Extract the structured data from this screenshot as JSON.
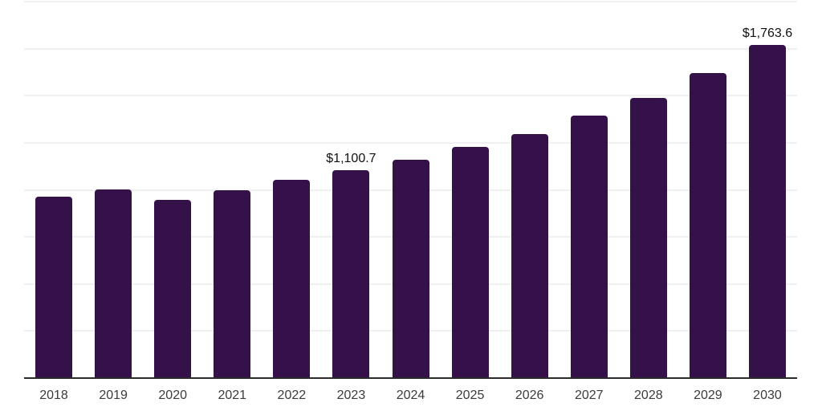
{
  "chart_data": {
    "type": "bar",
    "title": "",
    "xlabel": "",
    "ylabel": "",
    "legend": "none",
    "grid": "horizontal",
    "categories": [
      "2018",
      "2019",
      "2020",
      "2021",
      "2022",
      "2023",
      "2024",
      "2025",
      "2026",
      "2027",
      "2028",
      "2029",
      "2030"
    ],
    "values": [
      958,
      997,
      944,
      995,
      1050,
      1100.7,
      1157,
      1226,
      1294,
      1389,
      1485,
      1615,
      1763.6
    ],
    "data_labels": {
      "2023": "$1,100.7",
      "2030": "$1,763.6"
    },
    "ylim": [
      0,
      2000
    ],
    "gridline_values": [
      250,
      500,
      750,
      1000,
      1250,
      1500,
      1750,
      2000
    ],
    "colors": {
      "bar": "#351149",
      "axis_line": "#2b2b2b",
      "gridline": "#f0f0f0",
      "tick_label": "#3b3b3b",
      "data_label": "#101010",
      "background": "#ffffff"
    }
  }
}
